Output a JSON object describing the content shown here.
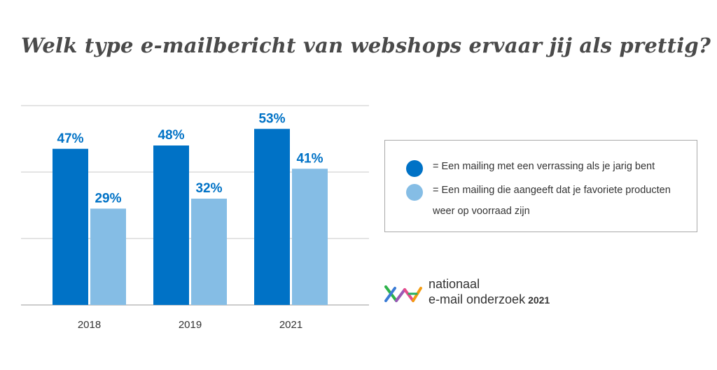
{
  "title": "Welk type e-mailbericht van webshops ervaar jij als prettig?",
  "chart_data": {
    "type": "bar",
    "categories": [
      "2018",
      "2019",
      "2021"
    ],
    "series": [
      {
        "legend": "= Een mailing met een verrassing als je jarig bent",
        "color": "#0072c6",
        "values": [
          47,
          48,
          53
        ],
        "labels": [
          "47%",
          "48%",
          "53%"
        ]
      },
      {
        "legend": "= Een mailing die aangeeft dat je favoriete producten weer op voorraad zijn",
        "color": "#85bde5",
        "values": [
          29,
          32,
          41
        ],
        "labels": [
          "29%",
          "32%",
          "41%"
        ]
      }
    ],
    "ylim": [
      0,
      70
    ],
    "grid": true,
    "legend_position": "right"
  },
  "logo": {
    "line1": "nationaal",
    "line2": "e-mail onderzoek",
    "year": "2021"
  }
}
